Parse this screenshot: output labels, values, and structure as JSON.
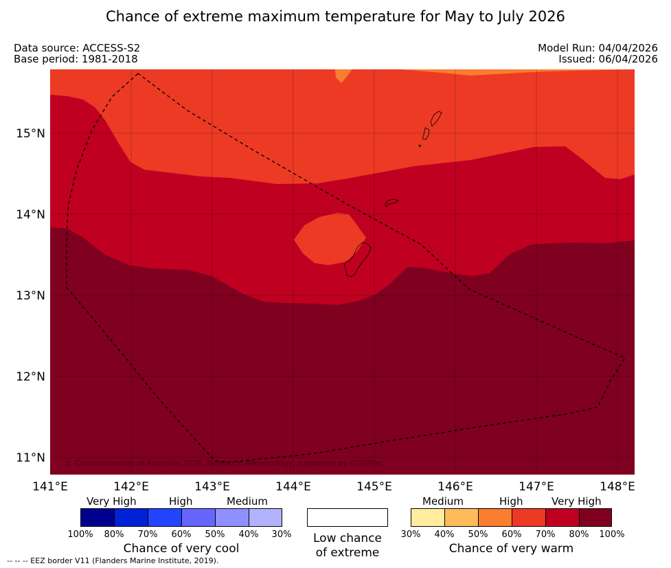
{
  "title": "Chance of extreme maximum temperature for May to July 2026",
  "meta": {
    "data_source": "Data source: ACCESS-S2",
    "base_period": "Base period: 1981-2018",
    "model_run": "Model Run: 04/04/2026",
    "issued": "Issued: 06/04/2026"
  },
  "map": {
    "lat_labels": [
      "15°N",
      "14°N",
      "13°N",
      "12°N",
      "11°N"
    ],
    "lon_labels": [
      "141°E",
      "142°E",
      "143°E",
      "144°E",
      "145°E",
      "146°E",
      "147°E",
      "148°E"
    ],
    "copyright": "© Commonwealth of Australia 2026, Bureau of Meteorology, supported by COSPPac",
    "colors": {
      "class_50_60": "#fb7d30",
      "class_60_70": "#ec3a25",
      "class_70_80": "#bf0021",
      "class_80_100": "#800020",
      "coastline": "#000000",
      "eez_border": "#000000"
    }
  },
  "legend": {
    "cool": {
      "levels": [
        "Very High",
        "High",
        "Medium"
      ],
      "ticks": [
        "100%",
        "80%",
        "70%",
        "60%",
        "50%",
        "40%",
        "30%"
      ],
      "colors": [
        "#00008f",
        "#0022d6",
        "#2244ff",
        "#6666ff",
        "#8f8fff",
        "#b2b2ff"
      ],
      "caption": "Chance of very cool"
    },
    "neutral": {
      "caption_line1": "Low chance",
      "caption_line2": "of extreme",
      "color": "#ffffff"
    },
    "warm": {
      "levels": [
        "Medium",
        "High",
        "Very High"
      ],
      "ticks": [
        "30%",
        "40%",
        "50%",
        "60%",
        "70%",
        "80%",
        "100%"
      ],
      "colors": [
        "#ffec9e",
        "#fdbb5c",
        "#fb7d30",
        "#ec3a25",
        "#bf0021",
        "#800020"
      ],
      "caption": "Chance of very warm"
    }
  },
  "footnote": "--  --  -- EEZ border V11 (Flanders Marine Institute, 2019)."
}
